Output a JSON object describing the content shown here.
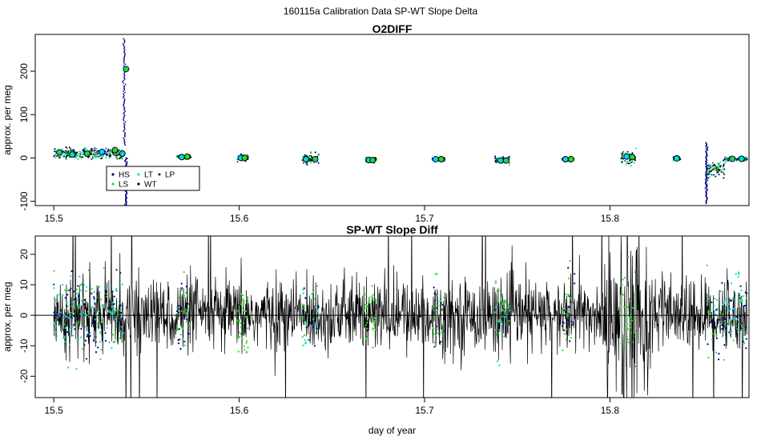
{
  "suptitle": "160115a   Calibration Data SP-WT Slope Delta",
  "colors": {
    "HS": "#00008b",
    "LS": "#22dd22",
    "LT": "#00dddd",
    "WT": "#000000",
    "LP": "#1a4d1a"
  },
  "chart_data": [
    {
      "type": "scatter",
      "title": "O2DIFF",
      "xlabel": "",
      "ylabel": "approx. per meg",
      "xlim": [
        15.49,
        15.875
      ],
      "ylim": [
        -110,
        285
      ],
      "xticks": [
        15.5,
        15.6,
        15.7,
        15.8
      ],
      "xtick_labels": [
        "15.5",
        "15.6",
        "15.7",
        "15.8"
      ],
      "yticks": [
        -100,
        0,
        100,
        200
      ],
      "ytick_labels": [
        "-100",
        "0",
        "100",
        "200"
      ],
      "grid": false,
      "legend": {
        "placement": "bottom-left",
        "entries": [
          "HS",
          "LS",
          "LT",
          "WT",
          "LP"
        ]
      },
      "segments": [
        {
          "x0": 15.5,
          "x1": 15.538,
          "level": 10,
          "spread": 9
        },
        {
          "x0": 15.566,
          "x1": 15.574,
          "level": 2,
          "spread": 4
        },
        {
          "x0": 15.599,
          "x1": 15.605,
          "level": 0,
          "spread": 7
        },
        {
          "x0": 15.634,
          "x1": 15.643,
          "level": -3,
          "spread": 10
        },
        {
          "x0": 15.668,
          "x1": 15.674,
          "level": -5,
          "spread": 5
        },
        {
          "x0": 15.704,
          "x1": 15.711,
          "level": -3,
          "spread": 4
        },
        {
          "x0": 15.738,
          "x1": 15.746,
          "level": -5,
          "spread": 7
        },
        {
          "x0": 15.774,
          "x1": 15.781,
          "level": -3,
          "spread": 3
        },
        {
          "x0": 15.806,
          "x1": 15.814,
          "level": 2,
          "spread": 14
        },
        {
          "x0": 15.834,
          "x1": 15.838,
          "level": -1,
          "spread": 4
        },
        {
          "x0": 15.852,
          "x1": 15.862,
          "level": -25,
          "spread": 14
        },
        {
          "x0": 15.862,
          "x1": 15.874,
          "level": -2,
          "spread": 4
        }
      ],
      "spikes": [
        {
          "x": 15.538,
          "y_from": 30,
          "y_to": 275
        },
        {
          "x": 15.539,
          "y_from": -110,
          "y_to": 0
        },
        {
          "x": 15.852,
          "y_from": -105,
          "y_to": 35
        }
      ],
      "means": [
        {
          "x": 15.503,
          "y": 13
        },
        {
          "x": 15.51,
          "y": 8
        },
        {
          "x": 15.518,
          "y": 10
        },
        {
          "x": 15.526,
          "y": 14
        },
        {
          "x": 15.533,
          "y": 18
        },
        {
          "x": 15.537,
          "y": 10
        },
        {
          "x": 15.539,
          "y": 205
        },
        {
          "x": 15.569,
          "y": 2
        },
        {
          "x": 15.572,
          "y": 3
        },
        {
          "x": 15.601,
          "y": 0
        },
        {
          "x": 15.603,
          "y": 0
        },
        {
          "x": 15.636,
          "y": -3
        },
        {
          "x": 15.641,
          "y": -3
        },
        {
          "x": 15.67,
          "y": -5
        },
        {
          "x": 15.672,
          "y": -5
        },
        {
          "x": 15.706,
          "y": -3
        },
        {
          "x": 15.709,
          "y": -3
        },
        {
          "x": 15.741,
          "y": -6
        },
        {
          "x": 15.744,
          "y": -6
        },
        {
          "x": 15.776,
          "y": -3
        },
        {
          "x": 15.779,
          "y": -3
        },
        {
          "x": 15.809,
          "y": 3
        },
        {
          "x": 15.812,
          "y": 2
        },
        {
          "x": 15.836,
          "y": -1
        },
        {
          "x": 15.866,
          "y": -2
        },
        {
          "x": 15.871,
          "y": -2
        }
      ]
    },
    {
      "type": "line",
      "title": "SP-WT Slope Diff",
      "xlabel": "day of year",
      "ylabel": "approx. per meg",
      "xlim": [
        15.49,
        15.875
      ],
      "ylim": [
        -27,
        26
      ],
      "xticks": [
        15.5,
        15.6,
        15.7,
        15.8
      ],
      "xtick_labels": [
        "15.5",
        "15.6",
        "15.7",
        "15.8"
      ],
      "yticks": [
        -20,
        -10,
        0,
        10,
        20
      ],
      "ytick_labels": [
        "-20",
        "-10",
        "0",
        "10",
        "20"
      ],
      "hline": 0,
      "grid": false,
      "data_range": [
        15.5,
        15.874
      ],
      "noise_sd": 8,
      "high_noise_band": {
        "x0": 15.797,
        "x1": 15.822,
        "sd": 20
      },
      "colored_clusters": [
        {
          "x0": 15.5,
          "x1": 15.538,
          "series": [
            "HS",
            "LS",
            "LT"
          ]
        },
        {
          "x0": 15.566,
          "x1": 15.574,
          "series": [
            "HS",
            "LS"
          ]
        },
        {
          "x0": 15.599,
          "x1": 15.605,
          "series": [
            "LS"
          ]
        },
        {
          "x0": 15.634,
          "x1": 15.643,
          "series": [
            "HS",
            "LS",
            "LT"
          ]
        },
        {
          "x0": 15.668,
          "x1": 15.674,
          "series": [
            "LS"
          ]
        },
        {
          "x0": 15.704,
          "x1": 15.711,
          "series": [
            "HS",
            "LS"
          ]
        },
        {
          "x0": 15.738,
          "x1": 15.746,
          "series": [
            "LS",
            "LT"
          ]
        },
        {
          "x0": 15.774,
          "x1": 15.781,
          "series": [
            "HS",
            "LS"
          ]
        },
        {
          "x0": 15.806,
          "x1": 15.814,
          "series": [
            "LS"
          ]
        },
        {
          "x0": 15.852,
          "x1": 15.874,
          "series": [
            "HS",
            "LS",
            "LT"
          ]
        }
      ]
    }
  ]
}
